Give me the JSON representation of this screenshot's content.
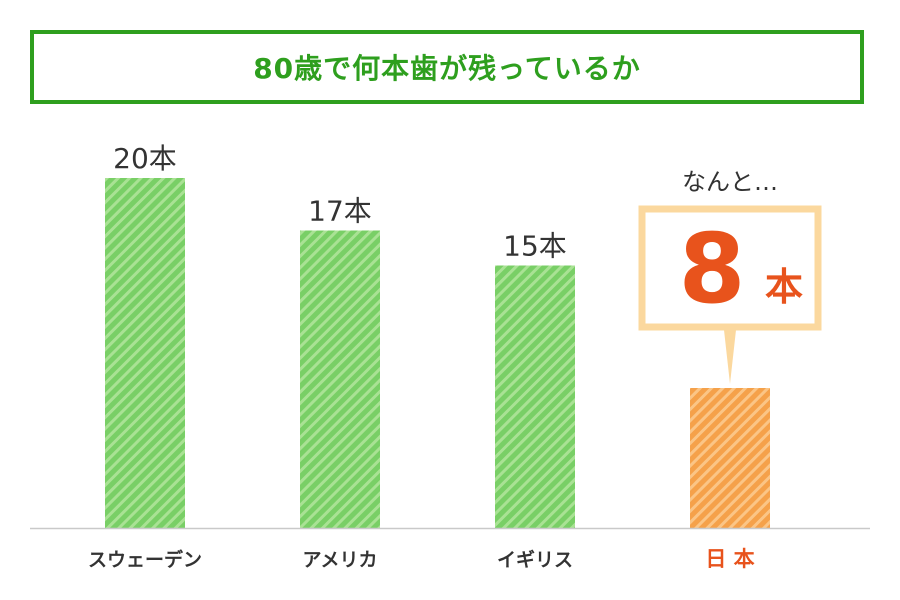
{
  "colors": {
    "title": "#2e9f1e",
    "bar_green": "#79cf66",
    "bar_green_stripe": "#a9e294",
    "bar_orange": "#f5a14a",
    "bar_orange_stripe": "#fbc586",
    "highlight_text": "#e8531c",
    "callout_border": "#fbd89e",
    "axis": "#c9c9c9",
    "label_text": "#333333"
  },
  "chart_data": {
    "type": "bar",
    "title": "80歳で何本歯が残っているか",
    "categories": [
      "スウェーデン",
      "アメリカ",
      "イギリス",
      "日 本"
    ],
    "values": [
      20,
      17,
      15,
      8
    ],
    "unit": "本",
    "value_labels": [
      "20本",
      "17本",
      "15本",
      "8"
    ],
    "highlight_index": 3,
    "ylim": [
      0,
      20
    ],
    "grid": false,
    "annotation": {
      "intro": "なんと…",
      "value": "8",
      "unit": "本"
    }
  }
}
